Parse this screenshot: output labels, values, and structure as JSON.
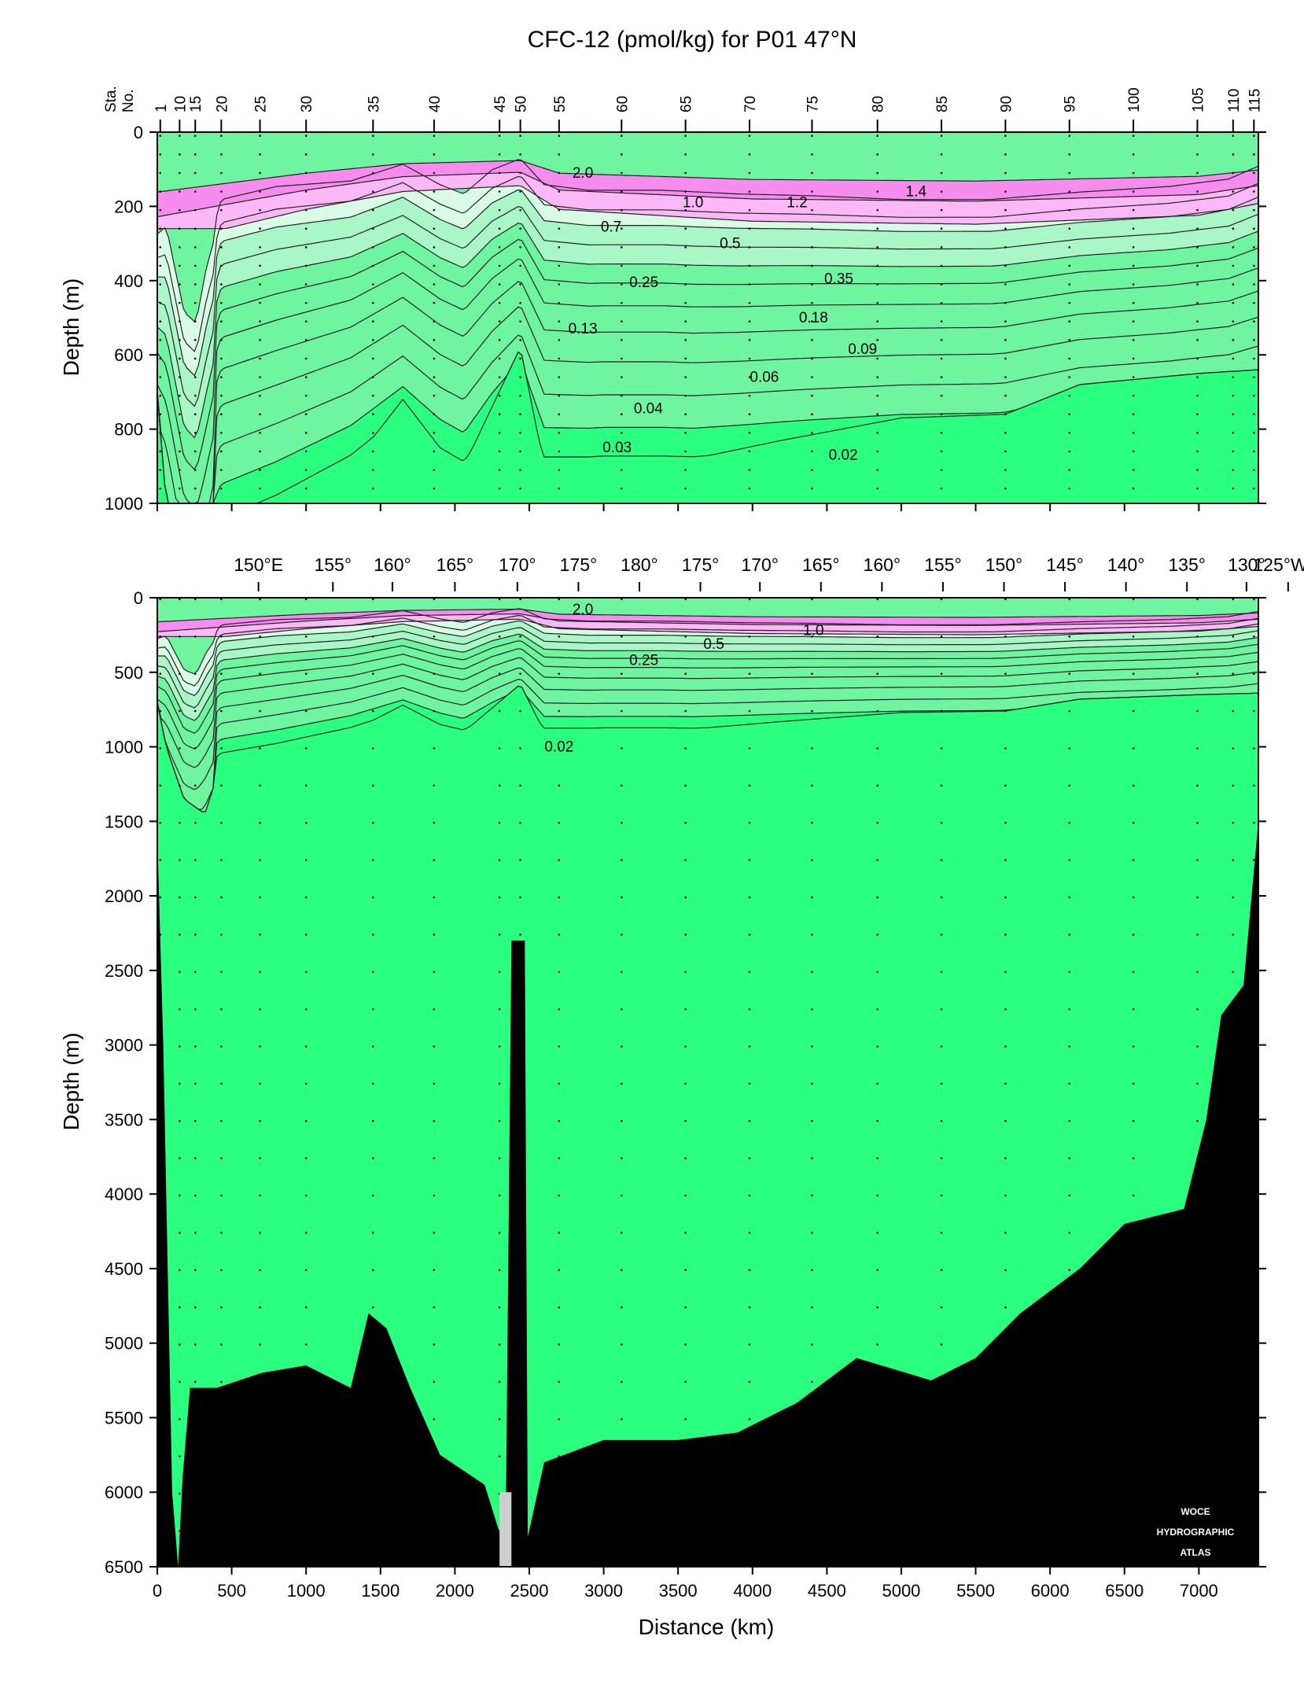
{
  "chart_data": {
    "type": "section",
    "title": "CFC-12 (pmol/kg) for P01 47°N",
    "xlabel": "Distance (km)",
    "xlim": [
      0,
      7400
    ],
    "x_ticks": [
      0,
      500,
      1000,
      1500,
      2000,
      2500,
      3000,
      3500,
      4000,
      4500,
      5000,
      5500,
      6000,
      6500,
      7000
    ],
    "station_axis_label": [
      "Sta.",
      "No."
    ],
    "stations": [
      {
        "label": "1",
        "km": 20
      },
      {
        "label": "10",
        "km": 150
      },
      {
        "label": "15",
        "km": 255
      },
      {
        "label": "20",
        "km": 430
      },
      {
        "label": "25",
        "km": 690
      },
      {
        "label": "30",
        "km": 1000
      },
      {
        "label": "35",
        "km": 1450
      },
      {
        "label": "40",
        "km": 1860
      },
      {
        "label": "45",
        "km": 2300
      },
      {
        "label": "50",
        "km": 2440
      },
      {
        "label": "55",
        "km": 2700
      },
      {
        "label": "60",
        "km": 3120
      },
      {
        "label": "65",
        "km": 3550
      },
      {
        "label": "70",
        "km": 3980
      },
      {
        "label": "75",
        "km": 4400
      },
      {
        "label": "80",
        "km": 4840
      },
      {
        "label": "85",
        "km": 5270
      },
      {
        "label": "90",
        "km": 5700
      },
      {
        "label": "95",
        "km": 6130
      },
      {
        "label": "100",
        "km": 6560
      },
      {
        "label": "105",
        "km": 6990
      },
      {
        "label": "110",
        "km": 7230
      },
      {
        "label": "115",
        "km": 7370
      }
    ],
    "longitudes": [
      {
        "label": "150°E",
        "km": 680
      },
      {
        "label": "155°",
        "km": 1180
      },
      {
        "label": "160°",
        "km": 1580
      },
      {
        "label": "165°",
        "km": 2000
      },
      {
        "label": "170°",
        "km": 2420
      },
      {
        "label": "175°",
        "km": 2830
      },
      {
        "label": "180°",
        "km": 3240
      },
      {
        "label": "175°",
        "km": 3650
      },
      {
        "label": "170°",
        "km": 4050
      },
      {
        "label": "165°",
        "km": 4460
      },
      {
        "label": "160°",
        "km": 4870
      },
      {
        "label": "155°",
        "km": 5280
      },
      {
        "label": "150°",
        "km": 5690
      },
      {
        "label": "145°",
        "km": 6100
      },
      {
        "label": "140°",
        "km": 6510
      },
      {
        "label": "135°",
        "km": 6920
      },
      {
        "label": "130°",
        "km": 7320
      },
      {
        "label": "125°W",
        "km": 7600
      }
    ],
    "panels": [
      {
        "ylabel": "Depth (m)",
        "ylim": [
          0,
          1000
        ],
        "y_ticks": [
          0,
          200,
          400,
          600,
          800,
          1000
        ],
        "contour_labels": [
          {
            "text": "2.0",
            "km": 2860,
            "depth": 110
          },
          {
            "text": "1.4",
            "km": 5100,
            "depth": 160
          },
          {
            "text": "1.2",
            "km": 4300,
            "depth": 190
          },
          {
            "text": "1.0",
            "km": 3600,
            "depth": 190
          },
          {
            "text": "0.7",
            "km": 3050,
            "depth": 255
          },
          {
            "text": "0.5",
            "km": 3850,
            "depth": 300
          },
          {
            "text": "0.35",
            "km": 4580,
            "depth": 395
          },
          {
            "text": "0.25",
            "km": 3270,
            "depth": 405
          },
          {
            "text": "0.18",
            "km": 4410,
            "depth": 500
          },
          {
            "text": "0.13",
            "km": 2860,
            "depth": 530
          },
          {
            "text": "0.09",
            "km": 4740,
            "depth": 585
          },
          {
            "text": "0.06",
            "km": 4080,
            "depth": 660
          },
          {
            "text": "0.04",
            "km": 3300,
            "depth": 745
          },
          {
            "text": "0.03",
            "km": 3090,
            "depth": 850
          },
          {
            "text": "0.02",
            "km": 4610,
            "depth": 870
          }
        ]
      },
      {
        "ylabel": "Depth (m)",
        "ylim": [
          0,
          6500
        ],
        "y_ticks": [
          0,
          500,
          1000,
          1500,
          2000,
          2500,
          3000,
          3500,
          4000,
          4500,
          5000,
          5500,
          6000,
          6500
        ],
        "contour_labels": [
          {
            "text": "2.0",
            "km": 2860,
            "depth": 80
          },
          {
            "text": "1.0",
            "km": 4410,
            "depth": 220
          },
          {
            "text": "0.5",
            "km": 3740,
            "depth": 310
          },
          {
            "text": "0.25",
            "km": 3270,
            "depth": 420
          },
          {
            "text": "0.02",
            "km": 2700,
            "depth": 1000
          }
        ]
      }
    ],
    "contour_levels": [
      0.02,
      0.03,
      0.04,
      0.06,
      0.09,
      0.13,
      0.18,
      0.25,
      0.35,
      0.5,
      0.7,
      1.0,
      1.2,
      1.4,
      2.0
    ],
    "colors": {
      "deep": "#2bff80",
      "mid": "#6ff59f",
      "light_green": "#a9f7c6",
      "pale_green": "#d9fbe6",
      "pink_light": "#fbb8f6",
      "pink_mid": "#f58cee",
      "pink_strong": "#ee66e6",
      "bottom": "#000000",
      "bottom_gray": "#cfcfcf"
    },
    "watermark": [
      "WOCE",
      "HYDROGRAPHIC",
      "ATLAS"
    ]
  }
}
